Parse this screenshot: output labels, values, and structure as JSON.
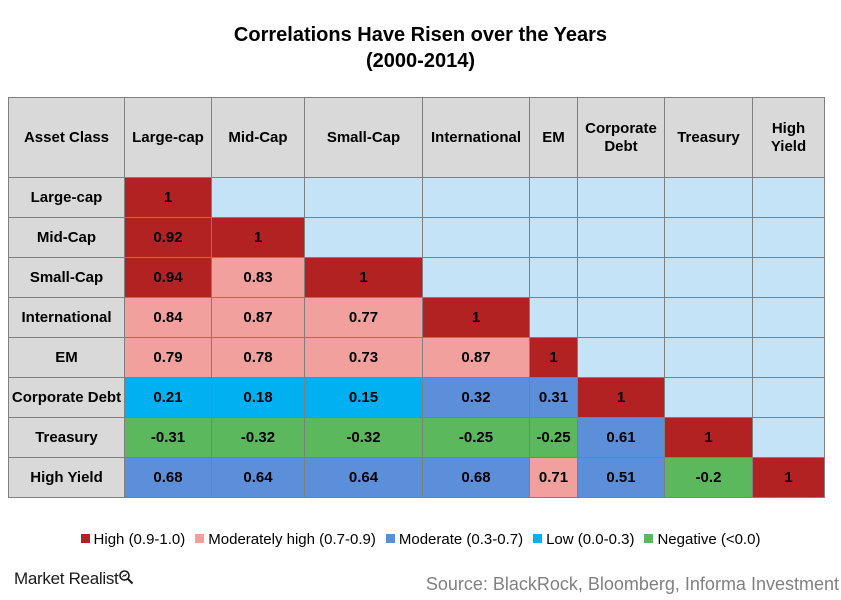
{
  "chart_data": {
    "type": "table",
    "title": "Correlations  Have Risen over the Years",
    "subtitle": "(2000-2014)",
    "corner_header": "Asset Class",
    "columns": [
      "Large-cap",
      "Mid-Cap",
      "Small-Cap",
      "International",
      "EM",
      "Corporate Debt",
      "Treasury",
      "High Yield"
    ],
    "rows": [
      {
        "label": "Large-cap",
        "values": [
          "1"
        ]
      },
      {
        "label": "Mid-Cap",
        "values": [
          "0.92",
          "1"
        ]
      },
      {
        "label": "Small-Cap",
        "values": [
          "0.94",
          "0.83",
          "1"
        ]
      },
      {
        "label": "International",
        "values": [
          "0.84",
          "0.87",
          "0.77",
          "1"
        ]
      },
      {
        "label": "EM",
        "values": [
          "0.79",
          "0.78",
          "0.73",
          "0.87",
          "1"
        ]
      },
      {
        "label": "Corporate Debt",
        "values": [
          "0.21",
          "0.18",
          "0.15",
          "0.32",
          "0.31",
          "1"
        ]
      },
      {
        "label": "Treasury",
        "values": [
          "-0.31",
          "-0.32",
          "-0.32",
          "-0.25",
          "-0.25",
          "0.61",
          "1"
        ]
      },
      {
        "label": "High Yield",
        "values": [
          "0.68",
          "0.64",
          "0.64",
          "0.68",
          "0.71",
          "0.51",
          "-0.2",
          "1"
        ]
      }
    ],
    "legend": [
      {
        "label": "High (0.9-1.0)",
        "color": "#b22222",
        "min": 0.9,
        "max": 1.0
      },
      {
        "label": "Moderately high (0.7-0.9)",
        "color": "#f2a09e",
        "min": 0.7,
        "max": 0.9
      },
      {
        "label": "Moderate (0.3-0.7)",
        "color": "#5b8fd9",
        "min": 0.3,
        "max": 0.7
      },
      {
        "label": "Low (0.0-0.3)",
        "color": "#00b0f0",
        "min": 0.0,
        "max": 0.3
      },
      {
        "label": "Negative (<0.0)",
        "color": "#5cb85c",
        "min": -1.0,
        "max": 0.0
      }
    ],
    "empty_cell_color": "#c5e3f6",
    "header_color": "#d9d9d9"
  },
  "footer": {
    "brand": "Market Realist",
    "source": "Source: BlackRock, Bloomberg, Informa Investment"
  }
}
